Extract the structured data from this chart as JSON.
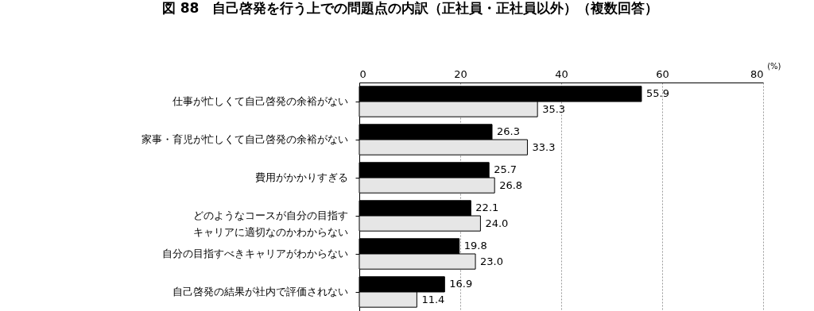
{
  "chart_data": {
    "type": "bar",
    "orientation": "horizontal",
    "title": "図 88　自己啓発を行う上での問題点の内訳（正社員・正社員以外）（複数回答）",
    "xlabel": "(%)",
    "categories": [
      "仕事が忙しくて自己啓発の余裕がない",
      "家事・育児が忙しくて自己啓発の余裕がない",
      "費用がかかりすぎる",
      "どのようなコースが自分の目指すキャリアに適切なのかわからない",
      "自分の目指すべきキャリアがわからない",
      "自己啓発の結果が社内で評価されない"
    ],
    "series": [
      {
        "color": "#000000",
        "values": [
          55.9,
          26.3,
          25.7,
          22.1,
          19.8,
          16.9
        ],
        "value_labels": [
          "55.9",
          "26.3",
          "25.7",
          "22.1",
          "19.8",
          "16.9"
        ]
      },
      {
        "color": "#e6e6e6",
        "values": [
          35.3,
          33.3,
          26.8,
          24.0,
          23.0,
          11.4
        ],
        "value_labels": [
          "35.3",
          "33.3",
          "26.8",
          "24.0",
          "23.0",
          "11.4"
        ]
      }
    ],
    "xlim": [
      0,
      80
    ],
    "xticks": [
      0,
      20,
      40,
      60,
      80
    ],
    "grid": "x"
  }
}
